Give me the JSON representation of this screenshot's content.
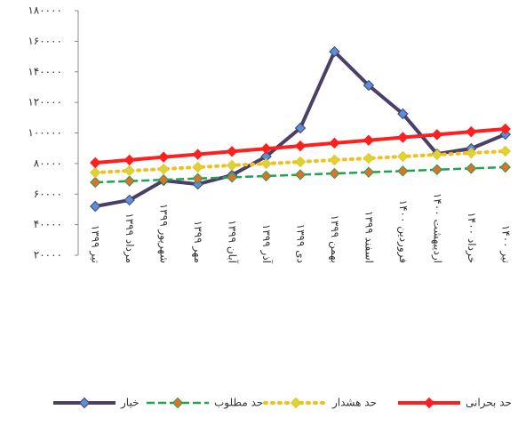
{
  "chart_data": {
    "type": "line",
    "categories": [
      "تیر ۱۳۹۹",
      "مرداد ۱۳۹۹",
      "شهریور ۱۳۹۹",
      "مهر ۱۳۹۹",
      "آبان ۱۳۹۹",
      "آذر ۱۳۹۹",
      "دی ۱۳۹۹",
      "بهمن ۱۳۹۹",
      "اسفند ۱۳۹۹",
      "فروردین ۱۴۰۰",
      "اردیبهشت ۱۴۰۰",
      "خرداد ۱۴۰۰",
      "تیر ۱۴۰۰"
    ],
    "series": [
      {
        "name": "خیار",
        "color": "#4a3f66",
        "marker_color": "#5b8fd8",
        "line_style": "solid",
        "values": [
          52000,
          56100,
          68900,
          66500,
          72400,
          84600,
          103200,
          153200,
          131100,
          112500,
          86300,
          89800,
          99100
        ]
      },
      {
        "name": "حد مطلوب",
        "color": "#1fa34f",
        "marker_color": "#e0702a",
        "line_style": "dashed",
        "values": [
          67700,
          68500,
          69400,
          70200,
          71000,
          71800,
          72700,
          73500,
          74300,
          75100,
          76000,
          76800,
          77600
        ]
      },
      {
        "name": "حد هشدار",
        "color": "#f2c01c",
        "marker_color": "#d8d43a",
        "line_style": "dotted",
        "values": [
          74100,
          75300,
          76400,
          77600,
          78800,
          79900,
          81100,
          82300,
          83400,
          84600,
          85800,
          86900,
          88100
        ]
      },
      {
        "name": "حد بحرانی",
        "color": "#ff1f1f",
        "marker_color": "#ff1f1f",
        "line_style": "solid",
        "values": [
          80500,
          82300,
          84200,
          86000,
          87900,
          89700,
          91500,
          93400,
          95200,
          97100,
          98900,
          100800,
          102600
        ]
      }
    ],
    "ylim": [
      20000,
      180000
    ],
    "yticks": [
      {
        "value": 20000,
        "label": "۲۰۰۰۰"
      },
      {
        "value": 40000,
        "label": "۴۰۰۰۰"
      },
      {
        "value": 60000,
        "label": "۶۰۰۰۰"
      },
      {
        "value": 80000,
        "label": "۸۰۰۰۰"
      },
      {
        "value": 100000,
        "label": "۱۰۰۰۰۰"
      },
      {
        "value": 120000,
        "label": "۱۲۰۰۰۰"
      },
      {
        "value": 140000,
        "label": "۱۴۰۰۰۰"
      },
      {
        "value": 160000,
        "label": "۱۶۰۰۰۰"
      },
      {
        "value": 180000,
        "label": "۱۸۰۰۰۰"
      }
    ],
    "grid": false,
    "legend": "bottom"
  }
}
